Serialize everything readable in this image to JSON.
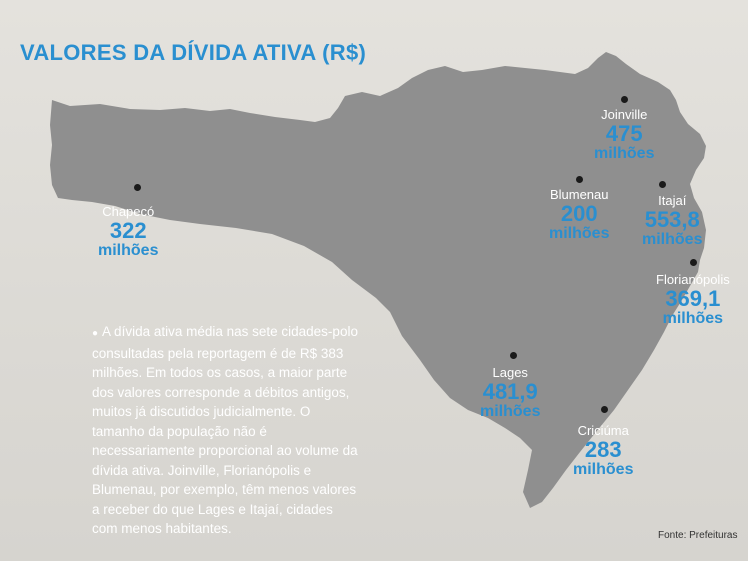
{
  "title": "VALORES DA DÍVIDA ATIVA (R$)",
  "colors": {
    "accent": "#2a8fd0",
    "map_fill": "#8f8f8f",
    "background": "#dcdad5",
    "city_name": "#ffffff",
    "dot": "#1a1a1a"
  },
  "cities": [
    {
      "name": "Joinville",
      "value": "475",
      "unit": "milhões"
    },
    {
      "name": "Chapecó",
      "value": "322",
      "unit": "milhões"
    },
    {
      "name": "Blumenau",
      "value": "200",
      "unit": "milhões"
    },
    {
      "name": "Itajaí",
      "value": "553,8",
      "unit": "milhões"
    },
    {
      "name": "Florianópolis",
      "value": "369,1",
      "unit": "milhões"
    },
    {
      "name": "Lages",
      "value": "481,9",
      "unit": "milhões"
    },
    {
      "name": "Criciúma",
      "value": "283",
      "unit": "milhões"
    }
  ],
  "note": "A dívida ativa média nas sete cidades-polo consultadas pela reportagem é de R$ 383 milhões. Em todos os casos, a maior parte dos valores corresponde a débitos antigos, muitos já discutidos judicialmente. O tamanho da população não é necessariamente proporcional ao volume da dívida ativa. Joinville, Florianópolis e Blumenau, por exemplo, têm menos valores a receber do que Lages e Itajaí, cidades com menos habitantes.",
  "source": "Fonte: Prefeituras"
}
